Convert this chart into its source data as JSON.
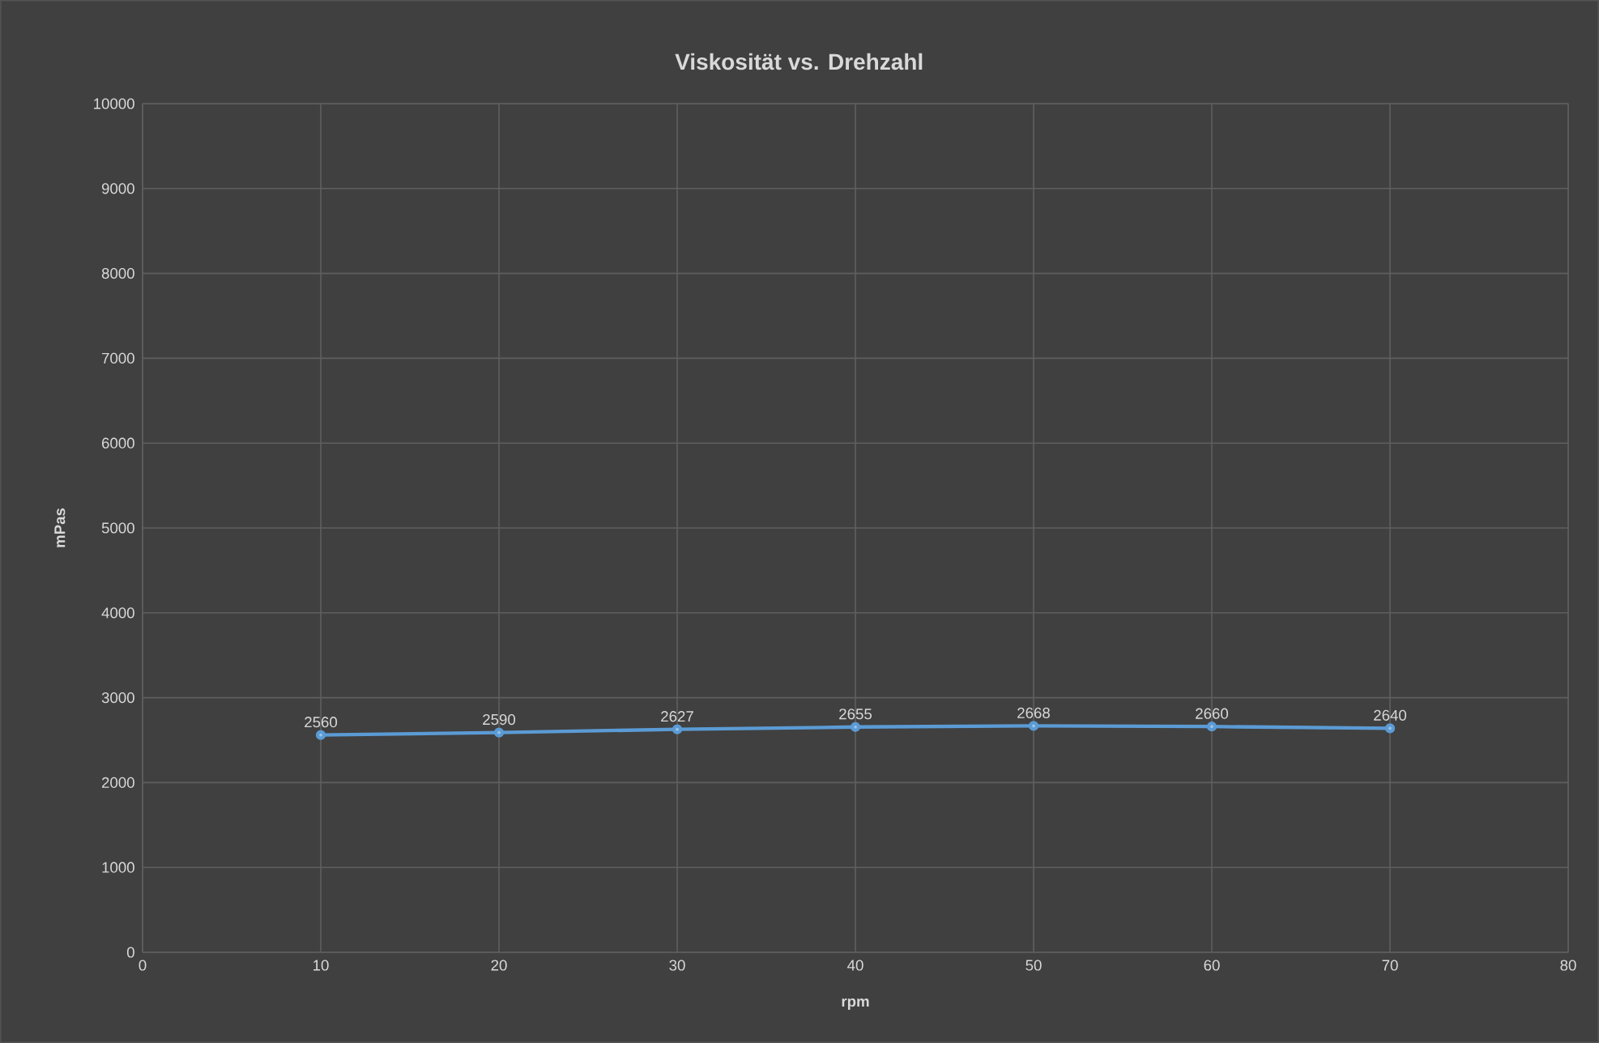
{
  "chart_data": {
    "type": "line",
    "title": "Viskosität vs. Drehzahl",
    "xlabel": "rpm",
    "ylabel": "mPas",
    "x": [
      10,
      20,
      30,
      40,
      50,
      60,
      70
    ],
    "values": [
      2560,
      2590,
      2627,
      2655,
      2668,
      2660,
      2640
    ],
    "color": "#5b9bd5",
    "marker": "circle",
    "line_style": "solid",
    "data_labels": true,
    "grid": true,
    "xlim": [
      0,
      80
    ],
    "xticks": [
      0,
      10,
      20,
      30,
      40,
      50,
      60,
      70,
      80
    ],
    "ylim": [
      0,
      10000
    ],
    "yticks": [
      0,
      1000,
      2000,
      3000,
      4000,
      5000,
      6000,
      7000,
      8000,
      9000,
      10000
    ]
  }
}
